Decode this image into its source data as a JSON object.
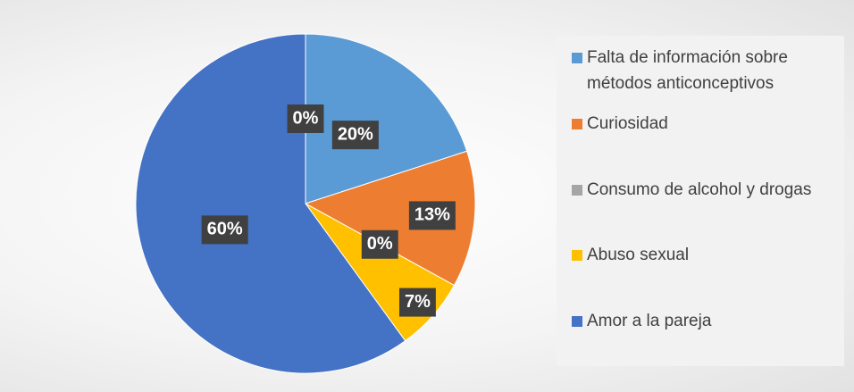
{
  "chart_data": {
    "type": "pie",
    "categories": [
      null,
      "Falta de información sobre métodos anticonceptivos",
      "Curiosidad",
      "Consumo de alcohol y drogas",
      "Abuso sexual",
      "Amor a la pareja"
    ],
    "values": [
      0,
      20,
      13,
      0,
      7,
      60
    ],
    "value_labels": [
      "0%",
      "20%",
      "13%",
      "0%",
      "7%",
      "60%"
    ],
    "colors": [
      "#888888",
      "#5b9bd5",
      "#ed7d31",
      "#a5a5a5",
      "#ffc000",
      "#4472c4"
    ],
    "legend": "right"
  }
}
